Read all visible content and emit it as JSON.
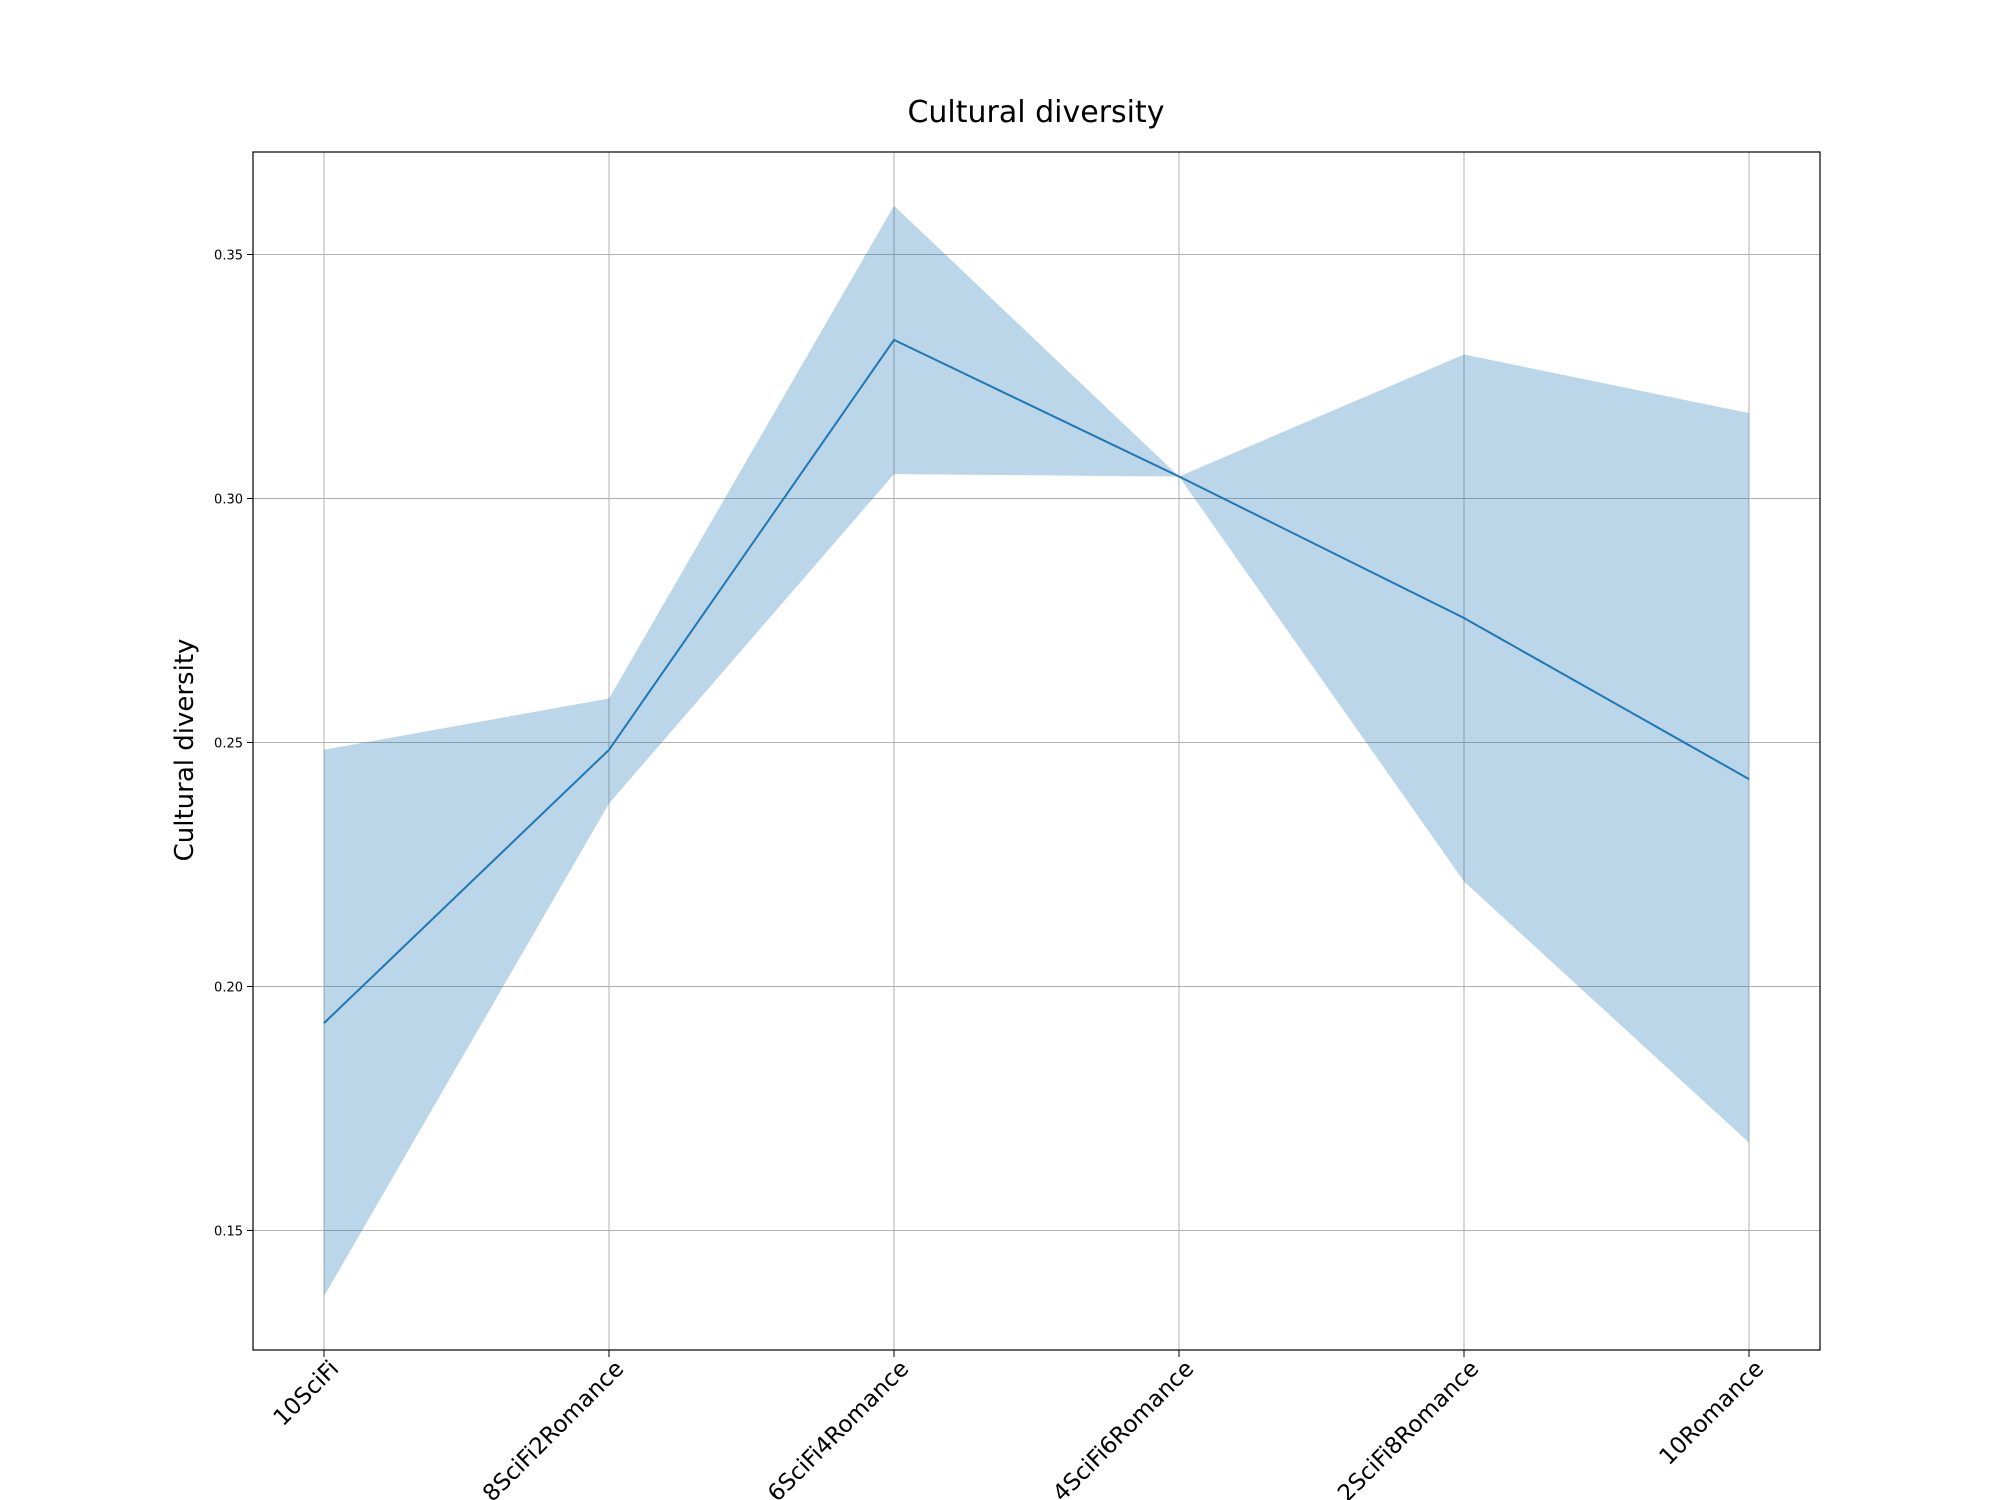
{
  "chart_data": {
    "type": "line",
    "title": "Cultural diversity",
    "xlabel": "",
    "ylabel": "Cultural diversity",
    "categories": [
      "10SciFi",
      "8SciFi2Romance",
      "6SciFi4Romance",
      "4SciFi6Romance",
      "2SciFi8Romance",
      "10Romance"
    ],
    "series": [
      {
        "values": [
          0.1925,
          0.2485,
          0.3325,
          0.3045,
          0.2755,
          0.2425
        ],
        "lower": [
          0.1365,
          0.2375,
          0.305,
          0.3045,
          0.2215,
          0.168
        ],
        "upper": [
          0.2485,
          0.259,
          0.36,
          0.3045,
          0.3295,
          0.3175
        ]
      }
    ],
    "yticks": [
      "0.15",
      "0.20",
      "0.25",
      "0.30",
      "0.35"
    ],
    "ylim": [
      0.1255,
      0.371
    ],
    "grid": true,
    "colors": {
      "line": "#1f77b4",
      "band": "#1f77b4"
    }
  }
}
